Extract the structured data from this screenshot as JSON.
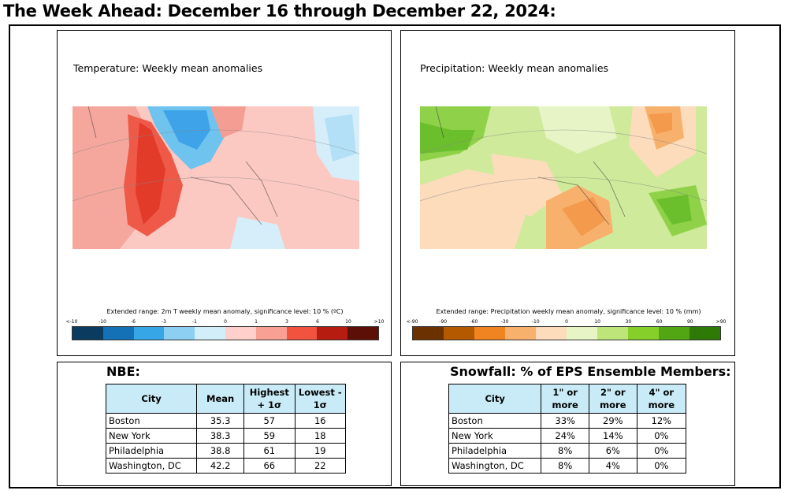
{
  "page_title": "The Week Ahead: December 16 through December 22, 2024:",
  "temperature_panel": {
    "title": "Temperature: Weekly mean anomalies",
    "colorbar_caption": "Extended range: 2m T weekly mean anomaly, significance level: 10 % (ºC)",
    "colorbar_ticks": [
      "<-10",
      "-10",
      "-6",
      "-3",
      "-1",
      "0",
      "1",
      "3",
      "6",
      "10",
      ">10"
    ],
    "colorbar_colors": [
      "#0b3b5e",
      "#1571b5",
      "#37a6e6",
      "#8ccff2",
      "#d2eef9",
      "#fdd0cc",
      "#f9a095",
      "#f1533f",
      "#b71c11",
      "#5b0f07"
    ]
  },
  "precipitation_panel": {
    "title": "Precipitation: Weekly mean anomalies",
    "colorbar_caption": "Extended range: Precipitation weekly mean anomaly, significance level: 10 % (mm)",
    "colorbar_ticks": [
      "<-90",
      "-90",
      "-60",
      "-30",
      "-10",
      "0",
      "10",
      "30",
      "60",
      "90",
      ">90"
    ],
    "colorbar_colors": [
      "#6b3200",
      "#b35a00",
      "#f08420",
      "#f8b16d",
      "#fddcbc",
      "#e6f4c6",
      "#bde57a",
      "#86cf2a",
      "#52a612",
      "#2f7a06"
    ]
  },
  "nbe_section": {
    "title": "NBE:",
    "headers": [
      "City",
      "Mean",
      "Highest + 1σ",
      "Lowest - 1σ"
    ],
    "rows": [
      [
        "Boston",
        "35.3",
        "57",
        "16"
      ],
      [
        "New York",
        "38.3",
        "59",
        "18"
      ],
      [
        "Philadelphia",
        "38.8",
        "61",
        "19"
      ],
      [
        "Washington, DC",
        "42.2",
        "66",
        "22"
      ]
    ]
  },
  "snow_section": {
    "title": "Snowfall: % of EPS Ensemble Members:",
    "headers": [
      "City",
      "1\" or more",
      "2\" or more",
      "4\" or more"
    ],
    "rows": [
      [
        "Boston",
        "33%",
        "29%",
        "12%"
      ],
      [
        "New York",
        "24%",
        "14%",
        "0%"
      ],
      [
        "Philadelphia",
        "8%",
        "6%",
        "0%"
      ],
      [
        "Washington, DC",
        "8%",
        "4%",
        "0%"
      ]
    ]
  }
}
